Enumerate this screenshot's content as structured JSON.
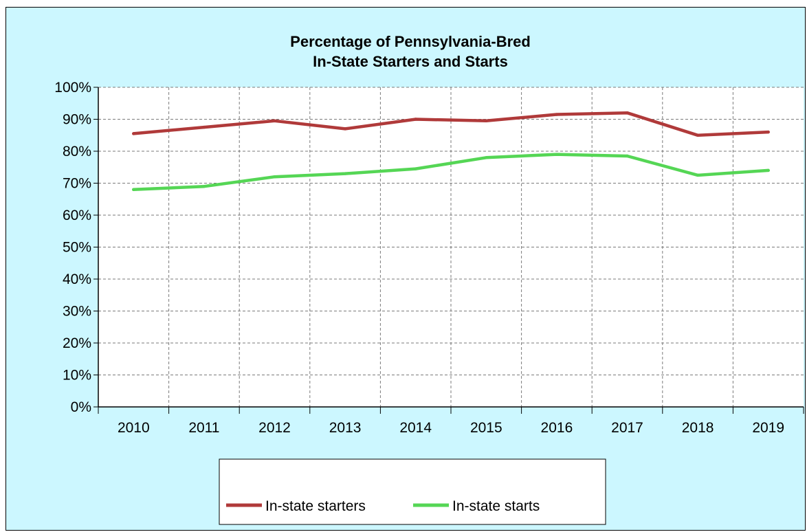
{
  "chart_data": {
    "type": "line",
    "title": "Percentage of Pennsylvania-Bred",
    "subtitle": "In-State Starters and Starts",
    "categories": [
      "2010",
      "2011",
      "2012",
      "2013",
      "2014",
      "2015",
      "2016",
      "2017",
      "2018",
      "2019"
    ],
    "series": [
      {
        "name": "In-state starters",
        "color": "#b03a3a",
        "values": [
          85.5,
          87.5,
          89.5,
          87,
          90,
          89.5,
          91.5,
          92,
          85,
          86
        ]
      },
      {
        "name": "In-state starts",
        "color": "#55d655",
        "values": [
          68,
          69,
          72,
          73,
          74.5,
          78,
          79,
          78.5,
          72.5,
          74
        ]
      }
    ],
    "ylim": [
      0,
      100
    ],
    "yticks": [
      "0%",
      "10%",
      "20%",
      "30%",
      "40%",
      "50%",
      "60%",
      "70%",
      "80%",
      "90%",
      "100%"
    ],
    "grid": true,
    "legend_position": "bottom",
    "background_color": "#ccf7ff"
  }
}
